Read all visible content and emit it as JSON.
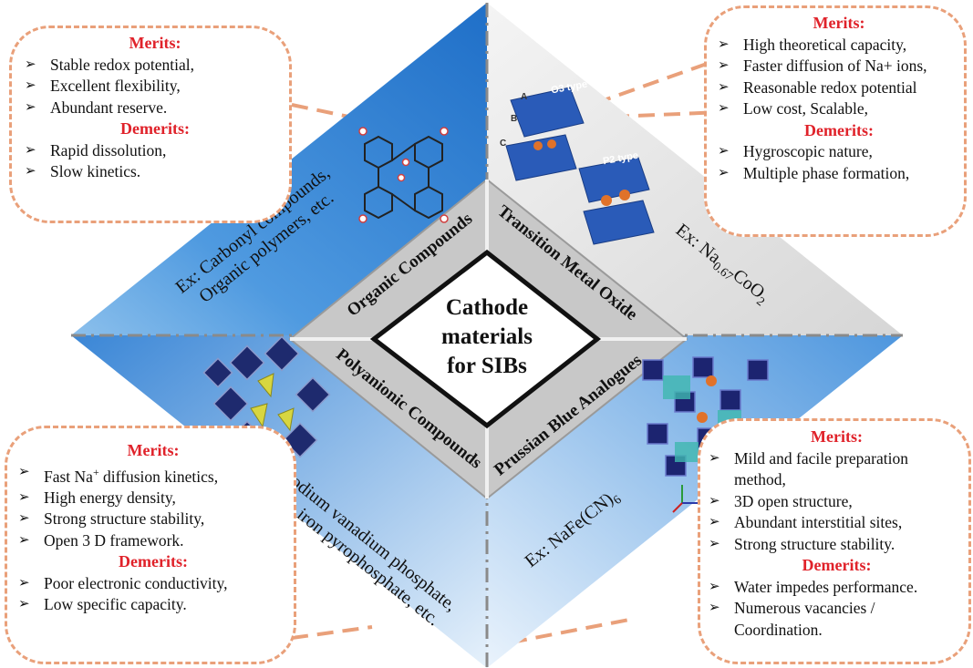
{
  "center": {
    "line1": "Cathode",
    "line2": "materials",
    "line3": "for SIBs"
  },
  "categories": {
    "organic": "Organic Compounds",
    "tmo": "Transition Metal Oxide",
    "poly": "Polyanionic Compounds",
    "prussian": "Prussian Blue Analogues"
  },
  "examples": {
    "organic_1": "Ex: Carbonyl compounds,",
    "organic_2": "Organic polymers, etc.",
    "tmo_pre": "Ex: Na",
    "tmo_sub1": "0.67",
    "tmo_mid": "CoO",
    "tmo_sub2": "2",
    "poly_1": "Ex: Sodium vanadium phosphate,",
    "poly_2": "Sodium iron pyrophosphate, etc.",
    "pba_pre": "Ex: NaFe(CN)",
    "pba_sub": "6"
  },
  "structure_labels": {
    "o3": "O3 type",
    "p2": "P2 type",
    "a": "A",
    "b": "B",
    "c": "C"
  },
  "panels": {
    "organic": {
      "merits_title": "Merits:",
      "merits": [
        "Stable redox potential,",
        "Excellent flexibility,",
        "Abundant reserve."
      ],
      "demerits_title": "Demerits:",
      "demerits": [
        "Rapid dissolution,",
        "Slow kinetics."
      ]
    },
    "tmo": {
      "merits_title": "Merits:",
      "merits": [
        "High theoretical capacity,",
        "Faster diffusion of Na+ ions,",
        "Reasonable redox potential",
        "Low cost, Scalable,"
      ],
      "demerits_title": "Demerits:",
      "demerits": [
        "Hygroscopic nature,",
        "Multiple phase formation,"
      ]
    },
    "poly": {
      "merits_title": "Merits:",
      "merit1_pre": "Fast Na",
      "merit1_sup": "+",
      "merit1_post": " diffusion kinetics,",
      "merits": [
        "High energy density,",
        "Strong structure stability,",
        "Open 3 D framework."
      ],
      "demerits_title": "Demerits:",
      "demerits": [
        "Poor electronic conductivity,",
        "Low specific capacity."
      ]
    },
    "prussian": {
      "merits_title": "Merits:",
      "merits": [
        "Mild and facile preparation",
        "method,",
        "3D open structure,",
        "Abundant interstitial sites,",
        "Strong structure stability."
      ],
      "demerits_title": "Demerits:",
      "demerits": [
        "Water impedes performance.",
        "Numerous vacancies /",
        "Coordination."
      ]
    }
  },
  "colors": {
    "merit_heading": "#e0222a",
    "dashed_border": "#e9a07a",
    "diamond_blue": "#2d7fd3",
    "center_gray": "#c8c8c8"
  },
  "bullet_glyph": "➢"
}
